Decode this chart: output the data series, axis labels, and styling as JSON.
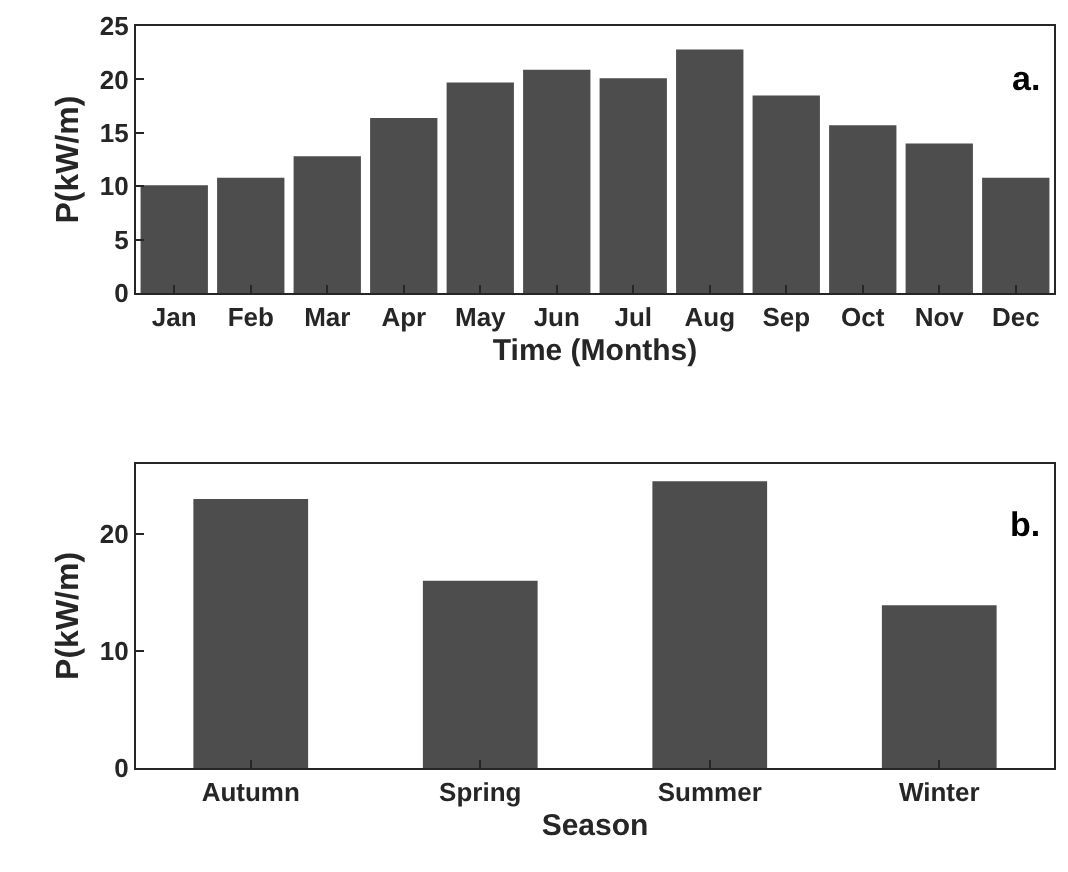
{
  "chart_data": [
    {
      "type": "bar",
      "categories": [
        "Jan",
        "Feb",
        "Mar",
        "Apr",
        "May",
        "Jun",
        "Jul",
        "Aug",
        "Sep",
        "Oct",
        "Nov",
        "Dec"
      ],
      "values": [
        10.1,
        10.8,
        12.8,
        16.4,
        19.7,
        20.9,
        20.1,
        22.8,
        18.5,
        15.7,
        14.0,
        10.8
      ],
      "color": "#4d4d4d",
      "ylim": [
        0,
        25
      ],
      "yticks": [
        0,
        5,
        10,
        15,
        20,
        25
      ],
      "xlabel": "Time (Months)",
      "ylabel": "P(kW/m)",
      "annotations": [
        "a."
      ]
    },
    {
      "type": "bar",
      "categories": [
        "Autumn",
        "Spring",
        "Summer",
        "Winter"
      ],
      "values": [
        23.0,
        16.0,
        24.5,
        13.9
      ],
      "color": "#4d4d4d",
      "ylim": [
        0,
        26
      ],
      "yticks": [
        0,
        10,
        20
      ],
      "xlabel": "Season",
      "ylabel": "P(kW/m)",
      "annotations": [
        "b."
      ]
    }
  ]
}
